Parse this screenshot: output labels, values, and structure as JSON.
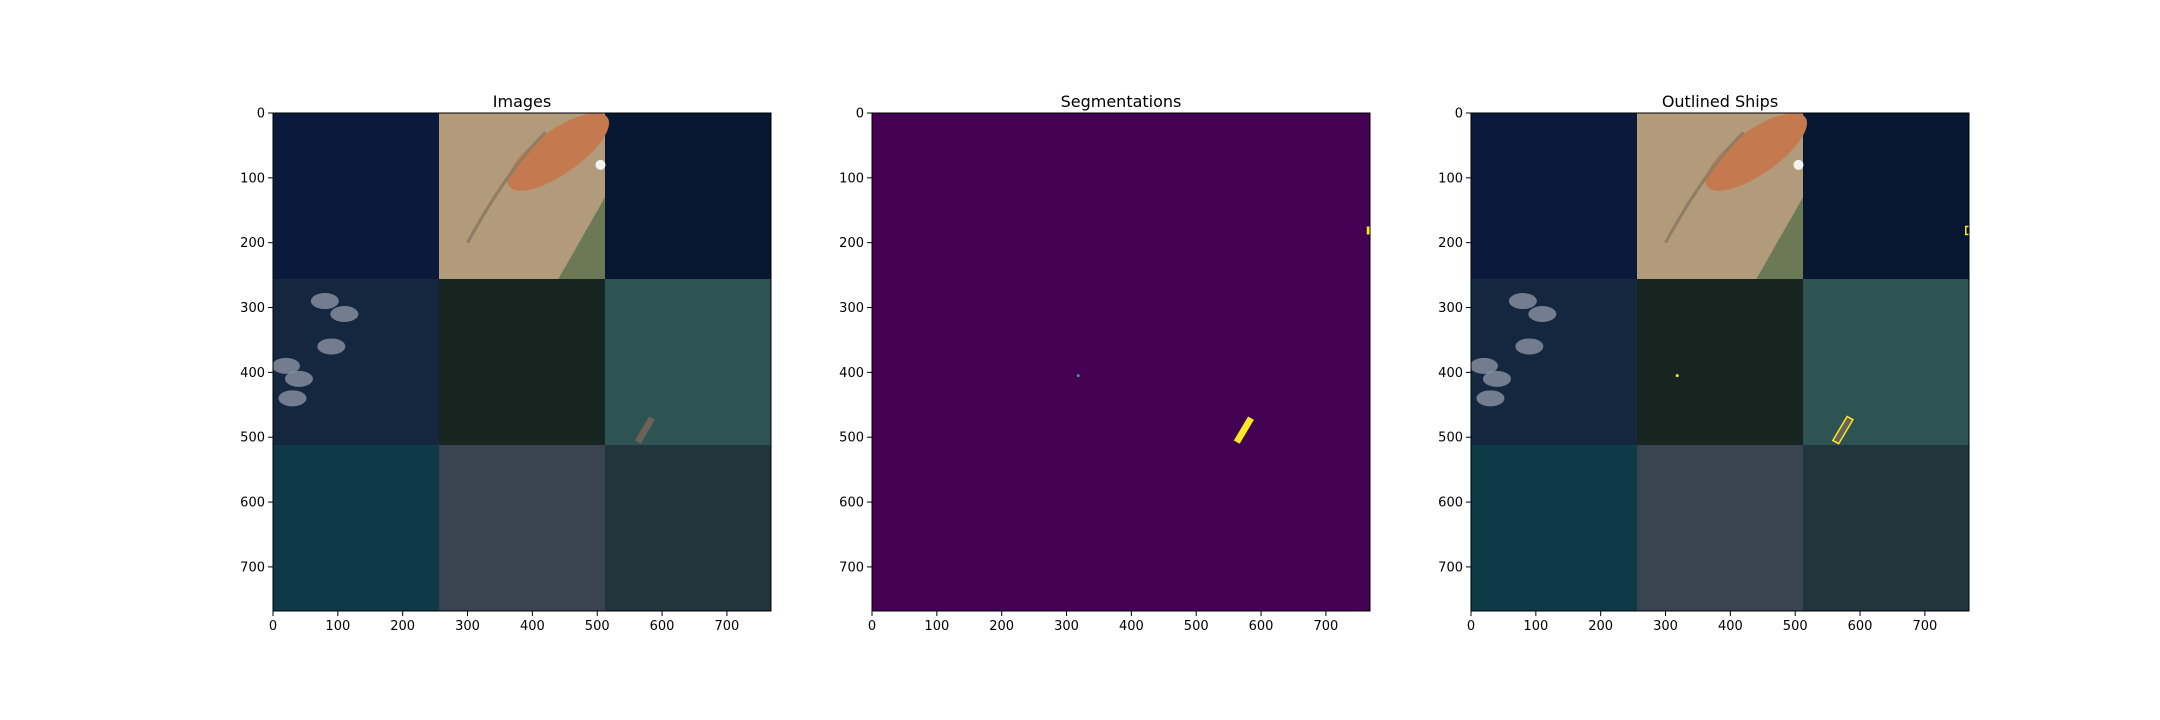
{
  "chart_data": [
    {
      "type": "image",
      "title": "Images",
      "xlim": [
        0,
        768
      ],
      "ylim": [
        768,
        0
      ],
      "xticks": [
        0,
        100,
        200,
        300,
        400,
        500,
        600,
        700
      ],
      "yticks": [
        0,
        100,
        200,
        300,
        400,
        500,
        600,
        700
      ]
    },
    {
      "type": "image",
      "title": "Segmentations",
      "xlim": [
        0,
        768
      ],
      "ylim": [
        768,
        0
      ],
      "xticks": [
        0,
        100,
        200,
        300,
        400,
        500,
        600,
        700
      ],
      "yticks": [
        0,
        100,
        200,
        300,
        400,
        500,
        600,
        700
      ]
    },
    {
      "type": "image",
      "title": "Outlined Ships",
      "xlim": [
        0,
        768
      ],
      "ylim": [
        768,
        0
      ],
      "xticks": [
        0,
        100,
        200,
        300,
        400,
        500,
        600,
        700
      ],
      "yticks": [
        0,
        100,
        200,
        300,
        400,
        500,
        600,
        700
      ]
    }
  ]
}
